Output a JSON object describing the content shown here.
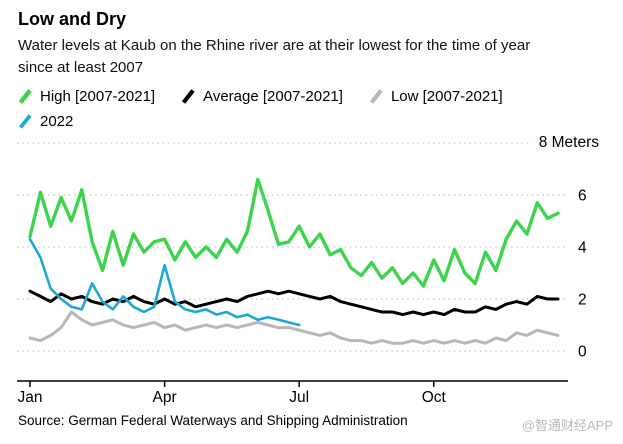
{
  "header": {
    "title": "Low and Dry",
    "subtitle": "Water levels at Kaub on the Rhine river are at their lowest for the time of year since at least 2007"
  },
  "footer": {
    "source": "Source: German Federal Waterways and Shipping Administration",
    "watermark": "@智通财经APP"
  },
  "chart_data": {
    "type": "line",
    "title": "Low and Dry",
    "subtitle": "Water levels at Kaub on the Rhine river are at their lowest for the time of year since at least 2007",
    "unit_label": "8 Meters",
    "ylabel": "Meters",
    "ylim": [
      0,
      8
    ],
    "grid_values": [
      0,
      2,
      4,
      6,
      8
    ],
    "ytick_labels": [
      6,
      4,
      2,
      0
    ],
    "x_unit": "weeks",
    "x_range_weeks": [
      0,
      52
    ],
    "xticks": [
      {
        "label": "Jan",
        "week": 0
      },
      {
        "label": "Apr",
        "week": 13
      },
      {
        "label": "Jul",
        "week": 26
      },
      {
        "label": "Oct",
        "week": 39
      }
    ],
    "grid": "dotted-horizontal",
    "legend_position": "top-left",
    "legend_rows": [
      [
        0,
        1,
        2
      ],
      [
        3
      ]
    ],
    "series": [
      {
        "name": "High [2007-2021]",
        "color": "#3bd44c",
        "width": 3.4,
        "start_week": 0,
        "values": [
          4.4,
          6.1,
          4.8,
          5.9,
          5.0,
          6.2,
          4.2,
          3.1,
          4.6,
          3.3,
          4.5,
          3.8,
          4.2,
          4.3,
          3.5,
          4.2,
          3.6,
          4.0,
          3.6,
          4.3,
          3.8,
          4.6,
          6.6,
          5.4,
          4.1,
          4.2,
          4.8,
          4.0,
          4.5,
          3.7,
          3.9,
          3.2,
          2.9,
          3.4,
          2.8,
          3.2,
          2.6,
          3.0,
          2.5,
          3.5,
          2.7,
          3.9,
          3.0,
          2.6,
          3.8,
          3.1,
          4.3,
          5.0,
          4.5,
          5.7,
          5.1,
          5.3
        ]
      },
      {
        "name": "Average [2007-2021]",
        "color": "#000000",
        "width": 3.0,
        "start_week": 0,
        "values": [
          2.3,
          2.1,
          1.9,
          2.2,
          2.0,
          2.1,
          1.9,
          1.8,
          2.0,
          1.9,
          2.1,
          1.9,
          1.8,
          2.0,
          1.8,
          1.9,
          1.7,
          1.8,
          1.9,
          2.0,
          1.9,
          2.1,
          2.2,
          2.3,
          2.2,
          2.3,
          2.2,
          2.1,
          2.0,
          2.1,
          1.9,
          1.8,
          1.7,
          1.6,
          1.5,
          1.5,
          1.4,
          1.5,
          1.4,
          1.5,
          1.4,
          1.6,
          1.5,
          1.5,
          1.7,
          1.6,
          1.8,
          1.9,
          1.8,
          2.1,
          2.0,
          2.0
        ]
      },
      {
        "name": "Low [2007-2021]",
        "color": "#b7b7b7",
        "width": 3.0,
        "start_week": 0,
        "values": [
          0.5,
          0.4,
          0.6,
          0.9,
          1.5,
          1.2,
          1.0,
          1.1,
          1.2,
          1.0,
          0.9,
          1.0,
          1.1,
          0.9,
          1.0,
          0.8,
          0.9,
          1.0,
          0.9,
          1.0,
          0.9,
          1.0,
          1.1,
          1.0,
          0.9,
          0.9,
          0.8,
          0.7,
          0.6,
          0.7,
          0.5,
          0.4,
          0.4,
          0.3,
          0.4,
          0.3,
          0.3,
          0.4,
          0.3,
          0.4,
          0.3,
          0.4,
          0.3,
          0.4,
          0.3,
          0.5,
          0.4,
          0.7,
          0.6,
          0.8,
          0.7,
          0.6
        ]
      },
      {
        "name": "2022",
        "color": "#1ba8d5",
        "width": 2.6,
        "start_week": 0,
        "values": [
          4.3,
          3.6,
          2.4,
          2.0,
          1.7,
          1.6,
          2.6,
          1.9,
          1.6,
          2.1,
          1.7,
          1.5,
          1.7,
          3.3,
          1.9,
          1.6,
          1.5,
          1.6,
          1.4,
          1.5,
          1.3,
          1.4,
          1.2,
          1.3,
          1.2,
          1.1,
          1.0
        ]
      }
    ]
  }
}
